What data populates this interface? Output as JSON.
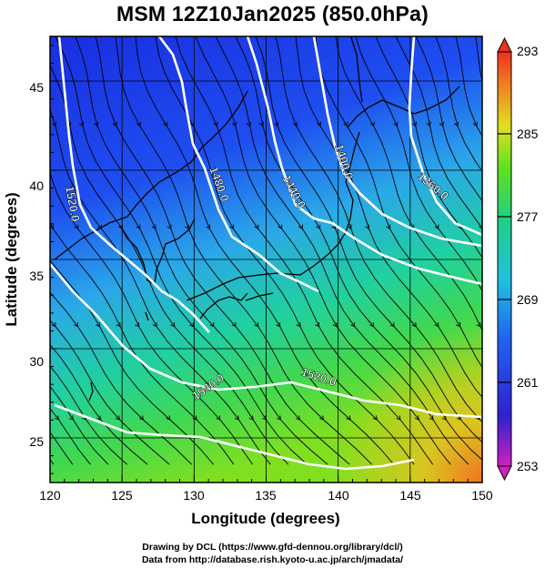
{
  "title": "MSM 12Z10Jan2025 (850.0hPa)",
  "xlabel": "Longitude (degrees)",
  "ylabel": "Latitude  (degrees)",
  "x_ticks": [
    "120",
    "125",
    "130",
    "135",
    "140",
    "145",
    "150"
  ],
  "y_ticks": [
    "25",
    "30",
    "35",
    "40",
    "45"
  ],
  "colorbar_ticks": [
    "293",
    "285",
    "277",
    "269",
    "261",
    "253"
  ],
  "contour_labels": [
    "1520.0",
    "1480.0",
    "1440.0",
    "1400.0",
    "1360.0",
    "1520.0",
    "1540.0"
  ],
  "credits": {
    "line1": "Drawing by DCL (https://www.gfd-dennou.org/library/dcl/)",
    "line2": "Data from http://database.rish.kyoto-u.ac.jp/arch/jmadata/"
  },
  "colors": {
    "cold": "#2040e0",
    "warm": "#e87020",
    "contour": "#ffffff",
    "streamline": "#000000"
  },
  "chart_data": {
    "type": "heatmap",
    "xlim": [
      120,
      150
    ],
    "ylim": [
      22.5,
      47.5
    ],
    "colorbar_range": [
      253,
      293
    ],
    "grid": true
  }
}
